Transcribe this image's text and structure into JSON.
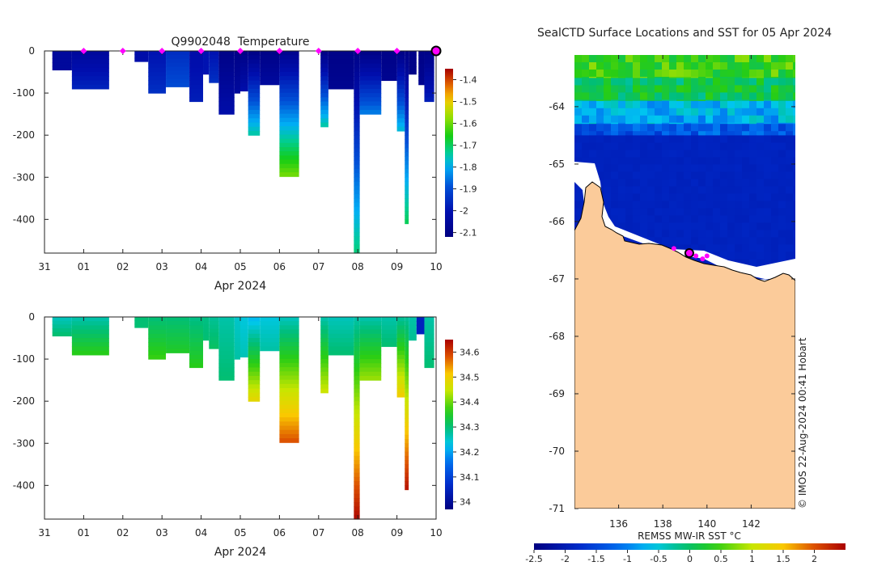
{
  "figure": {
    "float_id": "Q9902048",
    "temp_title_word": "Temperature",
    "map_title": "SealCTD Surface Locations and SST for 05 Apr 2024",
    "sst_label": "REMSS MW-IR SST °C",
    "credit": "© IMOS 22-Aug-2024 00:41 Hobart"
  },
  "colors": {
    "land": "#fbcb9a",
    "ice": "#ffffff",
    "coast": "#000000",
    "marker": "#ff00ff",
    "axis": "#222222"
  },
  "chart_data": [
    {
      "type": "heatmap",
      "name": "temperature-section",
      "title": "Q9902048  Temperature",
      "xlabel": "Apr 2024",
      "ylabel": "",
      "x_ticks": [
        "31",
        "01",
        "02",
        "03",
        "04",
        "05",
        "06",
        "07",
        "08",
        "09",
        "10"
      ],
      "x_range_days": [
        0,
        10
      ],
      "y_ticks": [
        0,
        -100,
        -200,
        -300,
        -400
      ],
      "ylim": [
        -480,
        0
      ],
      "colorbar_ticks": [
        "-1.4",
        "-1.5",
        "-1.6",
        "-1.7",
        "-1.8",
        "-1.9",
        "-2",
        "-2.1"
      ],
      "colorbar_range": [
        -2.12,
        -1.35
      ],
      "surface_markers_days": [
        1.0,
        2.0,
        3.0,
        4.0,
        5.0,
        6.0,
        7.0,
        8.0,
        9.0
      ],
      "latest_marker_day": 10.0,
      "profiles": [
        {
          "t0": 0.2,
          "t1": 0.7,
          "depth": 45,
          "top": -2.05,
          "bottom": -2.05
        },
        {
          "t0": 0.7,
          "t1": 1.65,
          "depth": 90,
          "top": -2.05,
          "bottom": -1.97
        },
        {
          "t0": 2.3,
          "t1": 2.65,
          "depth": 25,
          "top": -2.02,
          "bottom": -2.02
        },
        {
          "t0": 2.65,
          "t1": 3.1,
          "depth": 100,
          "top": -2.0,
          "bottom": -1.95
        },
        {
          "t0": 3.1,
          "t1": 3.7,
          "depth": 85,
          "top": -1.95,
          "bottom": -1.9
        },
        {
          "t0": 3.7,
          "t1": 4.05,
          "depth": 120,
          "top": -2.02,
          "bottom": -1.98
        },
        {
          "t0": 4.05,
          "t1": 4.2,
          "depth": 55,
          "top": -2.0,
          "bottom": -2.0
        },
        {
          "t0": 4.2,
          "t1": 4.45,
          "depth": 75,
          "top": -2.0,
          "bottom": -1.95
        },
        {
          "t0": 4.45,
          "t1": 4.85,
          "depth": 150,
          "top": -2.1,
          "bottom": -2.02
        },
        {
          "t0": 4.85,
          "t1": 5.0,
          "depth": 100,
          "top": -2.1,
          "bottom": -2.05
        },
        {
          "t0": 5.0,
          "t1": 5.2,
          "depth": 95,
          "top": -2.1,
          "bottom": -2.02
        },
        {
          "t0": 5.2,
          "t1": 5.5,
          "depth": 200,
          "top": -2.1,
          "bottom": -1.75
        },
        {
          "t0": 5.5,
          "t1": 6.0,
          "depth": 80,
          "top": -2.1,
          "bottom": -2.05
        },
        {
          "t0": 6.0,
          "t1": 6.5,
          "depth": 298,
          "top": -2.08,
          "bottom": -1.6
        },
        {
          "t0": 7.05,
          "t1": 7.25,
          "depth": 180,
          "top": -2.1,
          "bottom": -1.75
        },
        {
          "t0": 7.25,
          "t1": 7.9,
          "depth": 90,
          "top": -2.1,
          "bottom": -2.08
        },
        {
          "t0": 7.9,
          "t1": 8.05,
          "depth": 480,
          "top": -2.1,
          "bottom": -1.72
        },
        {
          "t0": 8.05,
          "t1": 8.6,
          "depth": 150,
          "top": -2.1,
          "bottom": -1.85
        },
        {
          "t0": 8.6,
          "t1": 9.0,
          "depth": 70,
          "top": -2.1,
          "bottom": -2.08
        },
        {
          "t0": 9.0,
          "t1": 9.2,
          "depth": 190,
          "top": -2.1,
          "bottom": -1.78
        },
        {
          "t0": 9.2,
          "t1": 9.3,
          "depth": 410,
          "top": -2.1,
          "bottom": -1.7
        },
        {
          "t0": 9.3,
          "t1": 9.5,
          "depth": 55,
          "top": -2.1,
          "bottom": -2.1
        },
        {
          "t0": 9.55,
          "t1": 9.7,
          "depth": 80,
          "top": -2.1,
          "bottom": -2.08
        },
        {
          "t0": 9.7,
          "t1": 9.95,
          "depth": 120,
          "top": -2.1,
          "bottom": -1.98
        }
      ]
    },
    {
      "type": "heatmap",
      "name": "salinity-section",
      "title": "",
      "xlabel": "Apr 2024",
      "ylabel": "",
      "x_ticks": [
        "31",
        "01",
        "02",
        "03",
        "04",
        "05",
        "06",
        "07",
        "08",
        "09",
        "10"
      ],
      "x_range_days": [
        0,
        10
      ],
      "y_ticks": [
        0,
        -100,
        -200,
        -300,
        -400
      ],
      "ylim": [
        -480,
        0
      ],
      "colorbar_ticks": [
        "34.6",
        "34.5",
        "34.4",
        "34.3",
        "34.2",
        "34.1",
        "34"
      ],
      "colorbar_range": [
        33.97,
        34.65
      ],
      "profiles": [
        {
          "t0": 0.2,
          "t1": 0.7,
          "depth": 45,
          "top": 34.26,
          "bottom": 34.3
        },
        {
          "t0": 0.7,
          "t1": 1.65,
          "depth": 90,
          "top": 34.27,
          "bottom": 34.36
        },
        {
          "t0": 2.3,
          "t1": 2.65,
          "depth": 25,
          "top": 34.3,
          "bottom": 34.3
        },
        {
          "t0": 2.65,
          "t1": 3.1,
          "depth": 100,
          "top": 34.3,
          "bottom": 34.37
        },
        {
          "t0": 3.1,
          "t1": 3.7,
          "depth": 85,
          "top": 34.3,
          "bottom": 34.35
        },
        {
          "t0": 3.7,
          "t1": 4.05,
          "depth": 120,
          "top": 34.29,
          "bottom": 34.36
        },
        {
          "t0": 4.05,
          "t1": 4.2,
          "depth": 55,
          "top": 34.29,
          "bottom": 34.3
        },
        {
          "t0": 4.2,
          "t1": 4.45,
          "depth": 75,
          "top": 34.28,
          "bottom": 34.31
        },
        {
          "t0": 4.45,
          "t1": 4.85,
          "depth": 150,
          "top": 34.27,
          "bottom": 34.3
        },
        {
          "t0": 4.85,
          "t1": 5.0,
          "depth": 100,
          "top": 34.25,
          "bottom": 34.27
        },
        {
          "t0": 5.0,
          "t1": 5.2,
          "depth": 95,
          "top": 34.24,
          "bottom": 34.26
        },
        {
          "t0": 5.2,
          "t1": 5.5,
          "depth": 200,
          "top": 34.22,
          "bottom": 34.48
        },
        {
          "t0": 5.5,
          "t1": 6.0,
          "depth": 80,
          "top": 34.24,
          "bottom": 34.27
        },
        {
          "t0": 6.0,
          "t1": 6.5,
          "depth": 298,
          "top": 34.26,
          "bottom": 34.58
        },
        {
          "t0": 7.05,
          "t1": 7.25,
          "depth": 180,
          "top": 34.27,
          "bottom": 34.45
        },
        {
          "t0": 7.25,
          "t1": 7.9,
          "depth": 90,
          "top": 34.26,
          "bottom": 34.3
        },
        {
          "t0": 7.9,
          "t1": 8.05,
          "depth": 480,
          "top": 34.27,
          "bottom": 34.64
        },
        {
          "t0": 8.05,
          "t1": 8.6,
          "depth": 150,
          "top": 34.27,
          "bottom": 34.42
        },
        {
          "t0": 8.6,
          "t1": 9.0,
          "depth": 70,
          "top": 34.27,
          "bottom": 34.3
        },
        {
          "t0": 9.0,
          "t1": 9.2,
          "depth": 190,
          "top": 34.28,
          "bottom": 34.5
        },
        {
          "t0": 9.2,
          "t1": 9.3,
          "depth": 410,
          "top": 34.28,
          "bottom": 34.63
        },
        {
          "t0": 9.3,
          "t1": 9.5,
          "depth": 55,
          "top": 34.27,
          "bottom": 34.28
        },
        {
          "t0": 9.5,
          "t1": 9.7,
          "depth": 40,
          "top": 34.05,
          "bottom": 34.05
        },
        {
          "t0": 9.7,
          "t1": 9.95,
          "depth": 120,
          "top": 34.27,
          "bottom": 34.3
        }
      ]
    },
    {
      "type": "heatmap",
      "name": "sst-map",
      "title": "SealCTD Surface Locations and SST for 05 Apr 2024",
      "xlabel": "",
      "ylabel": "",
      "x_ticks": [
        "136",
        "138",
        "140",
        "142"
      ],
      "x_range": [
        134,
        144
      ],
      "y_ticks": [
        "-64",
        "-65",
        "-66",
        "-67",
        "-68",
        "-69",
        "-70",
        "-71"
      ],
      "y_range": [
        -71,
        -63.1
      ],
      "colorbar_label": "REMSS MW-IR SST °C",
      "colorbar_ticks": [
        "-2.5",
        "-2",
        "-1.5",
        "-1",
        "-0.5",
        "0",
        "0.5",
        "1",
        "1.5",
        "2"
      ],
      "colorbar_range": [
        -2.5,
        2.5
      ],
      "sst_bands": [
        {
          "lat_top": -63.1,
          "lat_bottom": -63.5,
          "sst": 0.45
        },
        {
          "lat_top": -63.5,
          "lat_bottom": -63.9,
          "sst": 0.1
        },
        {
          "lat_top": -63.9,
          "lat_bottom": -64.3,
          "sst": -0.7
        },
        {
          "lat_top": -64.3,
          "lat_bottom": -64.5,
          "sst": -1.3
        },
        {
          "lat_top": -64.5,
          "lat_bottom": -67.0,
          "sst": -1.9
        }
      ],
      "seal_positions": [
        {
          "lon": 138.5,
          "lat": -66.47
        },
        {
          "lon": 139.5,
          "lat": -66.6
        },
        {
          "lon": 139.8,
          "lat": -66.65
        },
        {
          "lon": 140.0,
          "lat": -66.6
        }
      ],
      "latest_position": {
        "lon": 139.2,
        "lat": -66.55
      }
    }
  ]
}
